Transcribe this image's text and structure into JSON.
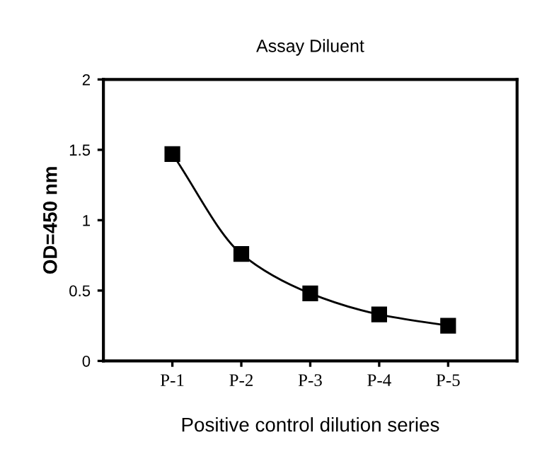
{
  "chart_data": {
    "type": "line",
    "title": "Assay Diluent",
    "xlabel": "Positive control dilution series",
    "ylabel": "OD=450 nm",
    "categories": [
      "P-1",
      "P-2",
      "P-3",
      "P-4",
      "P-5"
    ],
    "series": [
      {
        "color": "#000000",
        "values": [
          1.47,
          0.76,
          0.48,
          0.33,
          0.25
        ]
      }
    ],
    "ylim": [
      0,
      2
    ],
    "yticks": [
      0,
      0.5,
      1,
      1.5,
      2
    ],
    "marker": "square",
    "line_style": "solid",
    "grid": false
  }
}
